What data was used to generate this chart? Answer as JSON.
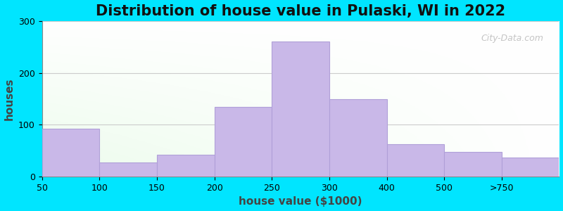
{
  "title": "Distribution of house value in Pulaski, WI in 2022",
  "xlabel": "house value ($1000)",
  "ylabel": "houses",
  "bar_labels": [
    "50",
    "100",
    "150",
    "200",
    "250",
    "300",
    "400",
    "500",
    ">750"
  ],
  "bar_values": [
    93,
    27,
    42,
    135,
    260,
    150,
    62,
    47,
    37
  ],
  "bar_color": "#c9b8e8",
  "bar_edgecolor": "#b0a0d8",
  "ylim": [
    0,
    300
  ],
  "yticks": [
    0,
    100,
    200,
    300
  ],
  "background_outer": "#00e5ff",
  "grid_color": "#cccccc",
  "title_fontsize": 15,
  "label_fontsize": 11,
  "tick_fontsize": 9,
  "watermark": "City-Data.com"
}
